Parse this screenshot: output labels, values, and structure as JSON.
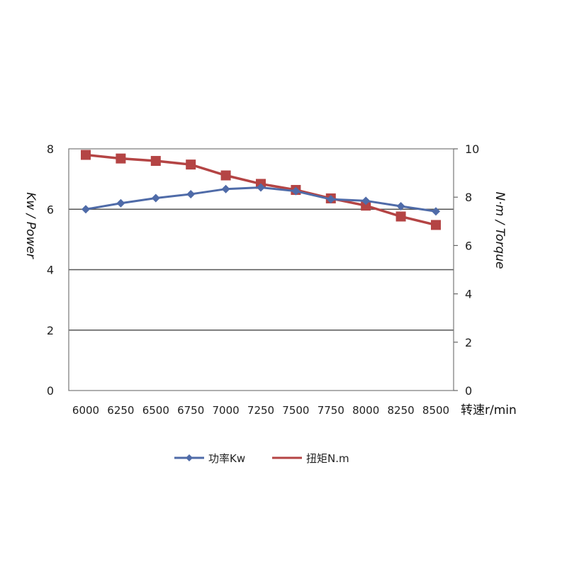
{
  "chart_data": {
    "type": "line",
    "title": "",
    "categories": [
      "6000",
      "6250",
      "6500",
      "6750",
      "7000",
      "7250",
      "7500",
      "7750",
      "8000",
      "8250",
      "8500"
    ],
    "xlabel": "转速r/min",
    "ylabel_left": "Kw / Power",
    "ylabel_right": "N·m / Torque",
    "ylim_left": [
      0,
      8
    ],
    "yticks_left": [
      "0",
      "2",
      "4",
      "6",
      "8"
    ],
    "ylim_right": [
      0,
      10
    ],
    "yticks_right": [
      "0",
      "2",
      "4",
      "6",
      "8",
      "10"
    ],
    "series": [
      {
        "name": "功率Kw",
        "axis": "left",
        "color": "#4f6ba8",
        "marker": "diamond",
        "values": [
          6.0,
          6.2,
          6.37,
          6.5,
          6.67,
          6.72,
          6.6,
          6.33,
          6.28,
          6.1,
          5.93
        ]
      },
      {
        "name": "扭矩N.m",
        "axis": "right",
        "color": "#b44444",
        "marker": "square",
        "values": [
          9.75,
          9.6,
          9.5,
          9.35,
          8.9,
          8.55,
          8.3,
          7.95,
          7.65,
          7.2,
          6.85
        ]
      }
    ],
    "grid": "horizontal",
    "legend": "bottom"
  }
}
